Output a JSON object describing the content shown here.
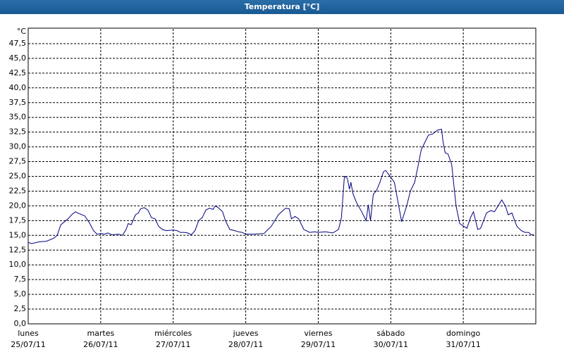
{
  "chart_data": {
    "type": "line",
    "title": "Temperatura [°C]",
    "ylabel": "°C",
    "grid": true,
    "xlim": [
      0,
      7
    ],
    "xticks": [
      {
        "value": 0,
        "label": "lunes"
      },
      {
        "value": 1,
        "label": "martes"
      },
      {
        "value": 2,
        "label": "miércoles"
      },
      {
        "value": 3,
        "label": "jueves"
      },
      {
        "value": 4,
        "label": "viernes"
      },
      {
        "value": 5,
        "label": "sábado"
      },
      {
        "value": 6,
        "label": "domingo"
      }
    ],
    "xtick_dates": [
      "25/07/11",
      "26/07/11",
      "27/07/11",
      "28/07/11",
      "29/07/11",
      "30/07/11",
      "31/07/11"
    ],
    "ylim": [
      0,
      50
    ],
    "yticks": [
      {
        "value": 0,
        "label": "0,0"
      },
      {
        "value": 2.5,
        "label": "2,5"
      },
      {
        "value": 5,
        "label": "5,0"
      },
      {
        "value": 7.5,
        "label": "7,5"
      },
      {
        "value": 10,
        "label": "10,0"
      },
      {
        "value": 12.5,
        "label": "12,5"
      },
      {
        "value": 15,
        "label": "15,0"
      },
      {
        "value": 17.5,
        "label": "17,5"
      },
      {
        "value": 20,
        "label": "20,0"
      },
      {
        "value": 22.5,
        "label": "22,5"
      },
      {
        "value": 25,
        "label": "25,0"
      },
      {
        "value": 27.5,
        "label": "27,5"
      },
      {
        "value": 30,
        "label": "30,0"
      },
      {
        "value": 32.5,
        "label": "32,5"
      },
      {
        "value": 35,
        "label": "35,0"
      },
      {
        "value": 37.5,
        "label": "37,5"
      },
      {
        "value": 40,
        "label": "40,0"
      },
      {
        "value": 42.5,
        "label": "42,5"
      },
      {
        "value": 45,
        "label": "45,0"
      },
      {
        "value": 47.5,
        "label": "47,5"
      }
    ],
    "series": [
      {
        "name": "Temperatura",
        "color": "#000080",
        "x": [
          0,
          0.05,
          0.15,
          0.25,
          0.35,
          0.4,
          0.45,
          0.55,
          0.6,
          0.65,
          0.7,
          0.78,
          0.85,
          0.9,
          0.95,
          1.0,
          1.05,
          1.1,
          1.15,
          1.25,
          1.3,
          1.35,
          1.38,
          1.42,
          1.48,
          1.52,
          1.55,
          1.6,
          1.65,
          1.7,
          1.75,
          1.8,
          1.85,
          1.9,
          2.0,
          2.05,
          2.1,
          2.15,
          2.2,
          2.25,
          2.3,
          2.35,
          2.4,
          2.45,
          2.5,
          2.55,
          2.58,
          2.62,
          2.68,
          2.72,
          2.78,
          2.85,
          2.9,
          2.95,
          3.0,
          3.1,
          3.25,
          3.35,
          3.45,
          3.55,
          3.6,
          3.63,
          3.68,
          3.73,
          3.8,
          3.88,
          3.95,
          4.0,
          4.1,
          4.2,
          4.28,
          4.32,
          4.36,
          4.4,
          4.43,
          4.45,
          4.48,
          4.53,
          4.6,
          4.66,
          4.69,
          4.72,
          4.76,
          4.8,
          4.85,
          4.9,
          4.93,
          5.05,
          5.15,
          5.22,
          5.27,
          5.33,
          5.38,
          5.42,
          5.46,
          5.52,
          5.58,
          5.64,
          5.7,
          5.72,
          5.75,
          5.79,
          5.84,
          5.9,
          5.95,
          6.01,
          6.05,
          6.1,
          6.14,
          6.17,
          6.2,
          6.24,
          6.28,
          6.32,
          6.38,
          6.43,
          6.48,
          6.53,
          6.58,
          6.62,
          6.67,
          6.7,
          6.74,
          6.8,
          6.85,
          6.9,
          6.94,
          6.97
        ],
        "values": [
          13.8,
          13.6,
          13.9,
          14.0,
          14.5,
          15.0,
          16.8,
          17.8,
          18.5,
          19.0,
          18.7,
          18.3,
          17.0,
          15.8,
          15.2,
          15.3,
          15.2,
          15.4,
          15.1,
          15.2,
          15.0,
          16.0,
          17.0,
          16.8,
          18.5,
          18.8,
          19.5,
          19.7,
          19.3,
          18.0,
          17.8,
          16.5,
          16.0,
          15.8,
          15.9,
          15.8,
          15.5,
          15.5,
          15.4,
          15.1,
          15.8,
          17.5,
          18.0,
          19.3,
          19.6,
          19.4,
          20.0,
          19.7,
          19.0,
          17.5,
          16.0,
          15.8,
          15.6,
          15.5,
          15.2,
          15.2,
          15.3,
          16.5,
          18.5,
          19.6,
          19.5,
          17.8,
          18.2,
          17.8,
          16.0,
          15.5,
          15.6,
          15.5,
          15.6,
          15.4,
          16.0,
          18.0,
          25.0,
          24.7,
          22.8,
          24.0,
          22.0,
          20.5,
          19.0,
          17.5,
          20.2,
          17.5,
          22.0,
          22.5,
          24.0,
          25.8,
          26.0,
          24.0,
          17.3,
          20.0,
          22.5,
          24.0,
          27.0,
          29.5,
          30.5,
          32.0,
          32.2,
          32.8,
          33.0,
          31.0,
          29.0,
          28.8,
          27.0,
          20.0,
          17.0,
          16.5,
          16.2,
          18.0,
          19.0,
          17.5,
          16.0,
          16.2,
          17.5,
          18.8,
          19.2,
          19.0,
          20.0,
          21.0,
          20.0,
          18.5,
          18.8,
          17.8,
          16.5,
          15.8,
          15.5,
          15.5,
          15.1,
          15.1
        ]
      }
    ]
  }
}
